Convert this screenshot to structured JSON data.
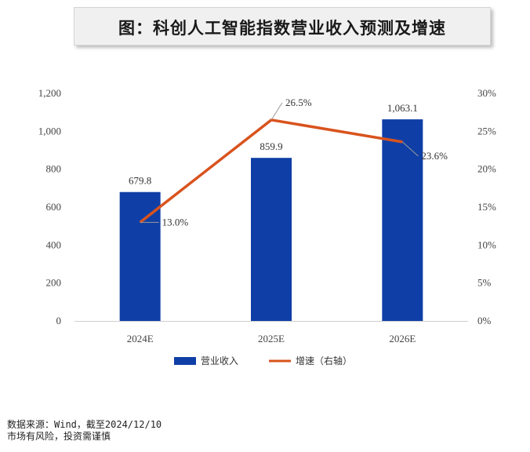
{
  "title": "图：科创人工智能指数营业收入预测及增速",
  "chart_data": {
    "type": "bar",
    "categories": [
      "2024E",
      "2025E",
      "2026E"
    ],
    "series": [
      {
        "name": "营业收入",
        "type": "bar",
        "axis": "left",
        "color": "#0f3fa6",
        "values": [
          679.8,
          859.9,
          1063.1
        ],
        "labels": [
          "679.8",
          "859.9",
          "1,063.1"
        ]
      },
      {
        "name": "增速（右轴）",
        "type": "line",
        "axis": "right",
        "color": "#d9531e",
        "values": [
          13.0,
          26.5,
          23.6
        ],
        "labels": [
          "13.0%",
          "26.5%",
          "23.6%"
        ]
      }
    ],
    "y_left": {
      "min": 0,
      "max": 1200,
      "ticks": [
        "0",
        "200",
        "400",
        "600",
        "800",
        "1,000",
        "1,200"
      ]
    },
    "y_right": {
      "min": 0,
      "max": 30,
      "ticks": [
        "0%",
        "5%",
        "10%",
        "15%",
        "20%",
        "25%",
        "30%"
      ]
    },
    "grid": false,
    "legend_position": "bottom"
  },
  "footer": {
    "source": "数据来源：Wind，截至2024/12/10",
    "disclaimer": "市场有风险，投资需谨慎"
  }
}
